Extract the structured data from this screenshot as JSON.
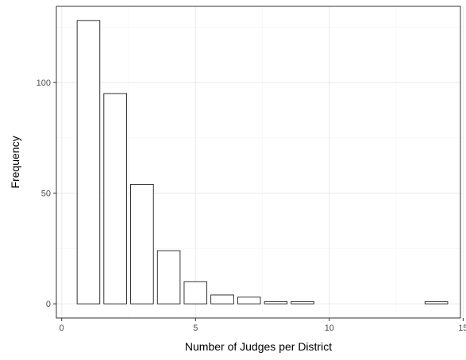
{
  "chart_data": {
    "type": "bar",
    "title": "",
    "xlabel": "Number of Judges per District",
    "ylabel": "Frequency",
    "x": [
      1,
      2,
      3,
      4,
      5,
      6,
      7,
      8,
      9,
      14
    ],
    "values": [
      128,
      95,
      54,
      24,
      10,
      4,
      3,
      1,
      1,
      1
    ],
    "bar_width": 0.85,
    "xlim": [
      -0.2,
      14.9
    ],
    "ylim": [
      -6.4,
      134.4
    ],
    "xticks": [
      0,
      5,
      10,
      15
    ],
    "yticks": [
      0,
      50,
      100
    ],
    "xminor": [
      2.5,
      7.5,
      12.5
    ],
    "yminor": [
      25,
      75,
      125
    ],
    "grid": true,
    "bar_fill": "#ffffff",
    "bar_stroke": "#000000",
    "panel_border": "#333333",
    "grid_major": "#ebebeb",
    "grid_minor": "#f5f5f5"
  }
}
